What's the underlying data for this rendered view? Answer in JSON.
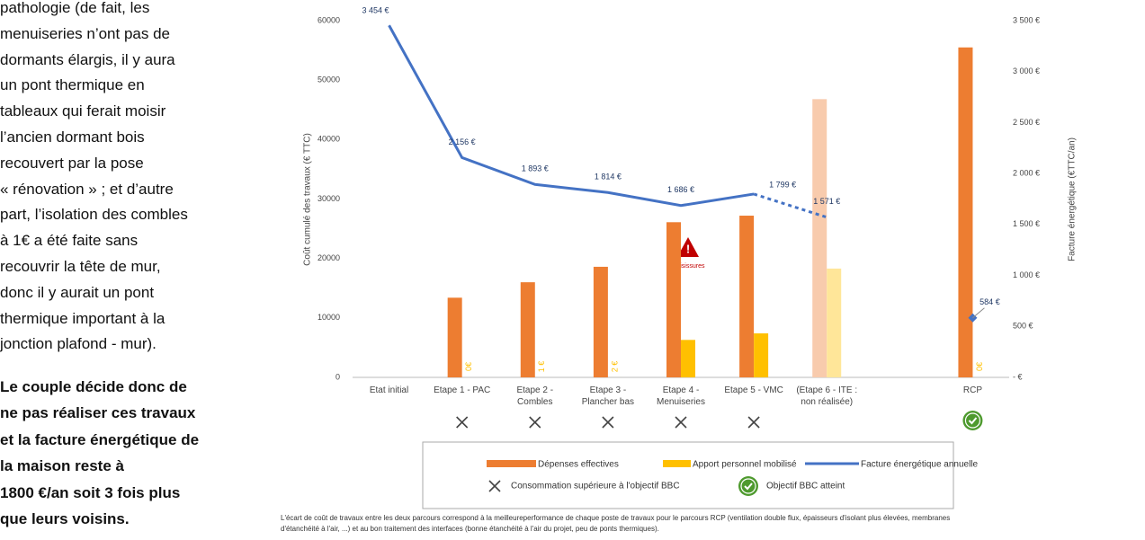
{
  "text": {
    "paragraph": [
      "pathologie (de fait, les",
      "menuiseries n’ont pas de",
      "dormants élargis, il y aura",
      "un pont thermique en",
      "tableaux qui ferait moisir",
      "l’ancien dormant bois",
      "recouvert par la pose",
      "« rénovation » ; et d’autre",
      "part, l’isolation des combles",
      "à 1€ a été faite sans",
      "recouvrir la tête de mur,",
      "donc il y aurait un pont",
      "thermique important à la",
      "jonction plafond - mur)."
    ],
    "conclusion": [
      "Le couple décide donc de",
      "ne pas réaliser ces travaux",
      "et la facture énergétique de",
      "la maison reste à",
      "1800 €/an soit 3 fois plus",
      "que leurs voisins."
    ]
  },
  "chart_data": {
    "type": "bar",
    "categories": [
      "Etat initial",
      "Etape 1 - PAC",
      "Etape 2 -\nCombles",
      "Etape 3 -\nPlancher bas",
      "Etape 4 -\nMenuiseries",
      "Etape 5 - VMC",
      "(Etape 6 - ITE :\nnon réalisée)",
      null,
      "RCP"
    ],
    "ylabel": "Coût cumulé des travaux (€ TTC)",
    "y2label": "Facture énergétique (€TTC/an)",
    "ylim": [
      0,
      60000
    ],
    "yticks": [
      0,
      10000,
      20000,
      30000,
      40000,
      50000,
      60000
    ],
    "y2lim": [
      0,
      3500
    ],
    "y2ticks": [
      {
        "value": 0,
        "label": "- €"
      },
      {
        "value": 500,
        "label": "500 €"
      },
      {
        "value": 1000,
        "label": "1 000 €"
      },
      {
        "value": 1500,
        "label": "1 500 €"
      },
      {
        "value": 2000,
        "label": "2 000 €"
      },
      {
        "value": 2500,
        "label": "2 500 €"
      },
      {
        "value": 3000,
        "label": "3 000 €"
      },
      {
        "value": 3500,
        "label": "3 500 €"
      }
    ],
    "series": [
      {
        "name": "Dépenses effectives",
        "type": "bar",
        "color": "#ED7D31",
        "faded_color": "#F8CBAD",
        "values": [
          null,
          13400,
          16000,
          18600,
          26100,
          27200,
          46800,
          null,
          55500
        ]
      },
      {
        "name": "Apport personnel mobilisé",
        "type": "bar",
        "color": "#FFC000",
        "faded_color": "#FFE699",
        "values": [
          null,
          0,
          1,
          2,
          6300,
          7400,
          18300,
          null,
          0
        ],
        "value_labels": [
          null,
          "0€",
          "1 €",
          "2 €",
          null,
          null,
          null,
          null,
          "0€"
        ]
      },
      {
        "name": "Facture énergétique annuelle",
        "type": "line",
        "axis": "y2",
        "color": "#4472C4",
        "values": [
          3454,
          2156,
          1893,
          1814,
          1686,
          1799,
          1571,
          null,
          584
        ],
        "value_labels": [
          "3 454 €",
          "2 156 €",
          "1 893 €",
          "1 814 €",
          "1 686 €",
          "1 799 €",
          "1 571 €",
          null,
          "584 €"
        ]
      }
    ],
    "faded_index": 6,
    "dashed_from_index": 5,
    "annotation": "moisissures",
    "bbc_markers": [
      null,
      "cross",
      "cross",
      "cross",
      "cross",
      "cross",
      null,
      null,
      "check"
    ],
    "bbc_legend": [
      "Consommation supérieure à l'objectif BBC",
      "Objectif BBC atteint"
    ],
    "footnote": [
      "L'écart de coût de travaux entre les deux parcours correspond à la meilleureperformance de chaque poste de travaux pour le parcours RCP (ventilation double flux, épaisseurs d'isolant plus élevées, membranes",
      "d'étanchéité à l'air, ...) et au bon traitement des interfaces (bonne étanchéité à l'air du projet, peu de ponts thermiques)."
    ]
  }
}
